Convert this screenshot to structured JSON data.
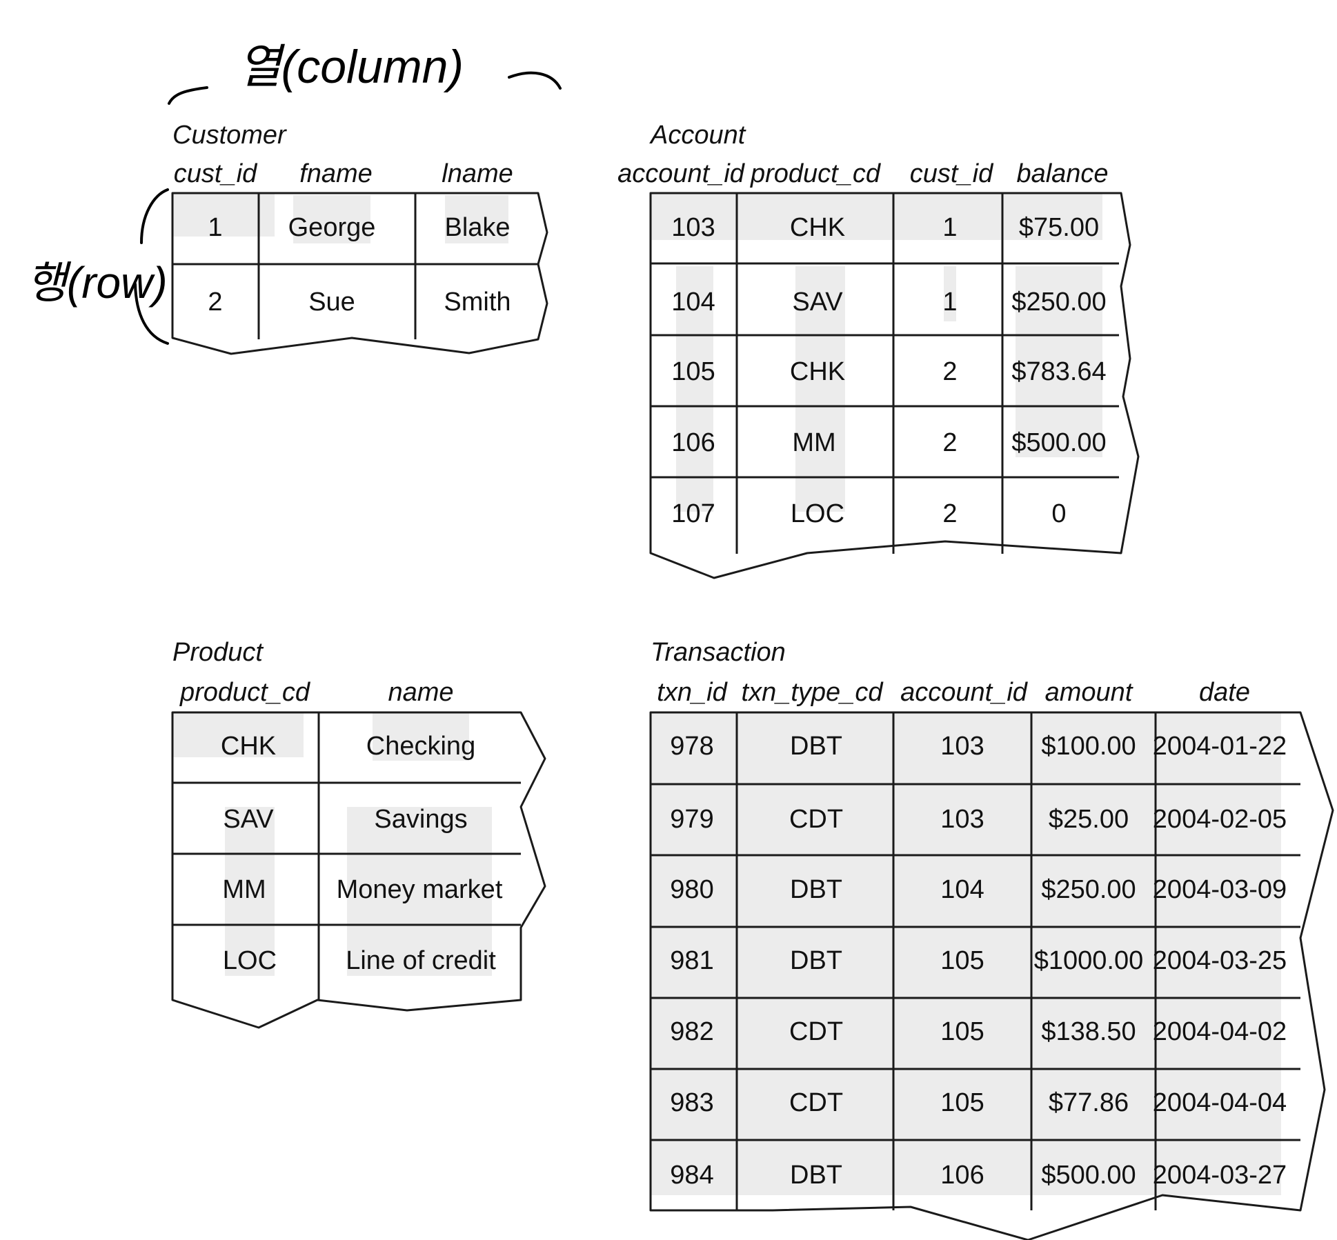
{
  "annotations": {
    "column": "열(column)",
    "row": "행(row)"
  },
  "tables": [
    {
      "title": "Customer",
      "columns": [
        "cust_id",
        "fname",
        "lname"
      ],
      "rows": [
        [
          "1",
          "George",
          "Blake"
        ],
        [
          "2",
          "Sue",
          "Smith"
        ]
      ]
    },
    {
      "title": "Account",
      "columns": [
        "account_id",
        "product_cd",
        "cust_id",
        "balance"
      ],
      "rows": [
        [
          "103",
          "CHK",
          "1",
          "$75.00"
        ],
        [
          "104",
          "SAV",
          "1",
          "$250.00"
        ],
        [
          "105",
          "CHK",
          "2",
          "$783.64"
        ],
        [
          "106",
          "MM",
          "2",
          "$500.00"
        ],
        [
          "107",
          "LOC",
          "2",
          "0"
        ]
      ]
    },
    {
      "title": "Product",
      "columns": [
        "product_cd",
        "name"
      ],
      "rows": [
        [
          "CHK",
          "Checking"
        ],
        [
          "SAV",
          "Savings"
        ],
        [
          "MM",
          "Money market"
        ],
        [
          "LOC",
          "Line of credit"
        ]
      ]
    },
    {
      "title": "Transaction",
      "columns": [
        "txn_id",
        "txn_type_cd",
        "account_id",
        "amount",
        "date"
      ],
      "rows": [
        [
          "978",
          "DBT",
          "103",
          "$100.00",
          "2004-01-22"
        ],
        [
          "979",
          "CDT",
          "103",
          "$25.00",
          "2004-02-05"
        ],
        [
          "980",
          "DBT",
          "104",
          "$250.00",
          "2004-03-09"
        ],
        [
          "981",
          "DBT",
          "105",
          "$1000.00",
          "2004-03-25"
        ],
        [
          "982",
          "CDT",
          "105",
          "$138.50",
          "2004-04-02"
        ],
        [
          "983",
          "CDT",
          "105",
          "$77.86",
          "2004-04-04"
        ],
        [
          "984",
          "DBT",
          "106",
          "$500.00",
          "2004-03-27"
        ]
      ]
    }
  ],
  "colors": {
    "cell_shade": "#ececec",
    "line": "#1a1a1a",
    "ink": "#000000"
  }
}
